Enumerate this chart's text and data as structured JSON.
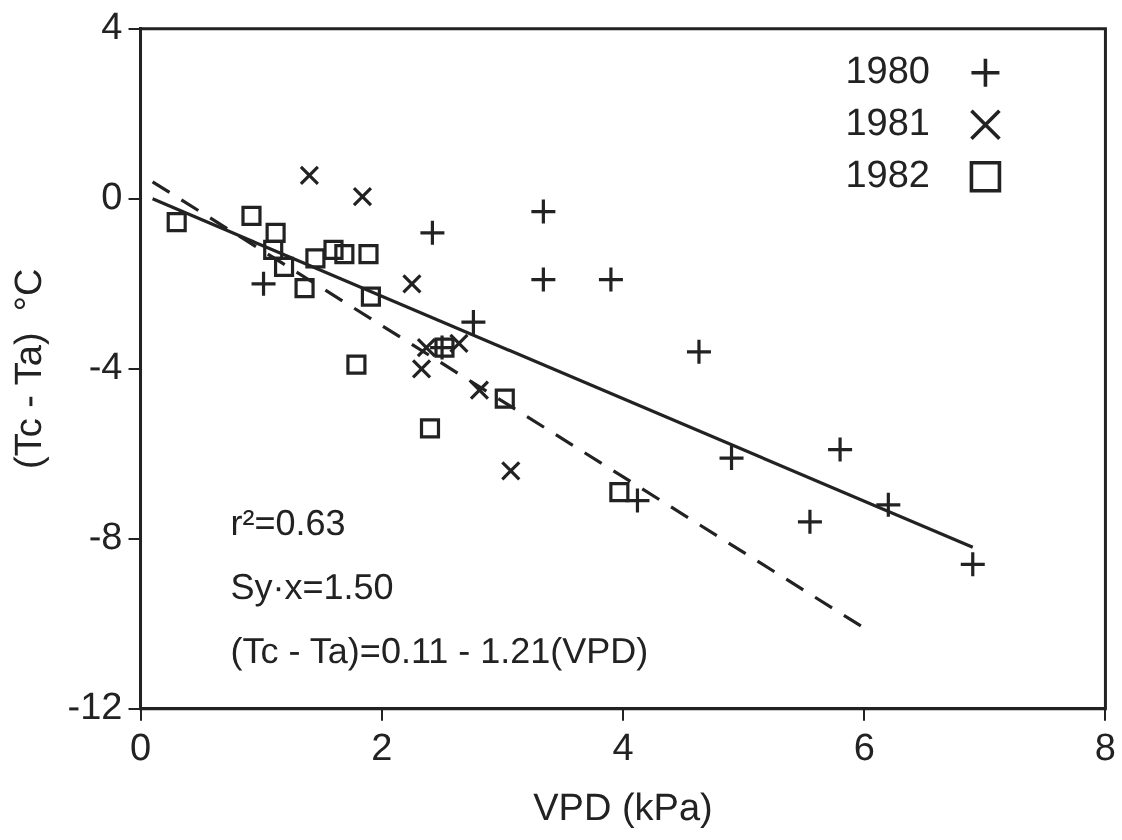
{
  "chart_data": {
    "type": "scatter",
    "xlabel": "VPD (kPa)",
    "ylabel": "(Tc - Ta)  °C",
    "xlim": [
      0,
      8
    ],
    "xticks": [
      0,
      2,
      4,
      6,
      8
    ],
    "ylim": [
      -12,
      4
    ],
    "yticks": [
      4,
      0,
      -4,
      -8,
      -12
    ],
    "grid": false,
    "legend": "top right",
    "series": [
      {
        "name": "1980",
        "type": "scatter",
        "marker": "plus",
        "color": "#222222",
        "x": [
          1.02,
          2.42,
          3.34,
          3.34,
          3.9,
          2.76,
          2.5,
          4.63,
          4.9,
          5.8,
          6.2,
          5.55,
          6.9,
          4.12
        ],
        "values": [
          -2.0,
          -0.8,
          -0.3,
          -1.9,
          -1.9,
          -2.9,
          -3.5,
          -3.6,
          -6.1,
          -5.9,
          -7.2,
          -7.6,
          -8.6,
          -7.1
        ]
      },
      {
        "name": "1981",
        "type": "scatter",
        "marker": "cross",
        "color": "#222222",
        "x": [
          1.4,
          1.84,
          2.25,
          2.33,
          2.37,
          2.64,
          2.81,
          3.07
        ],
        "values": [
          0.55,
          0.05,
          -2.0,
          -4.0,
          -3.5,
          -3.4,
          -4.5,
          -6.4
        ]
      },
      {
        "name": "1982",
        "type": "scatter",
        "marker": "square",
        "color": "#222222",
        "x": [
          0.3,
          0.92,
          1.12,
          1.1,
          1.19,
          1.36,
          1.45,
          1.6,
          1.69,
          1.89,
          1.91,
          1.79,
          2.52,
          3.02,
          2.4,
          3.97
        ],
        "values": [
          -0.55,
          -0.4,
          -0.8,
          -1.2,
          -1.6,
          -2.1,
          -1.4,
          -1.2,
          -1.3,
          -1.3,
          -2.3,
          -3.9,
          -3.5,
          -4.7,
          -5.4,
          -6.9
        ]
      },
      {
        "type": "line",
        "line_style": "solid",
        "marker": "none",
        "color": "#222222",
        "x": [
          0.1,
          6.9
        ],
        "values": [
          0,
          -8.2
        ]
      },
      {
        "type": "line",
        "line_style": "dashed",
        "marker": "none",
        "color": "#222222",
        "x": [
          0.1,
          6.0
        ],
        "values": [
          0.4,
          -10.1
        ]
      }
    ],
    "annotations": [
      "r²=0.63",
      "Sy·x=1.50",
      "(Tc - Ta)=0.11 - 1.21(VPD)"
    ]
  }
}
